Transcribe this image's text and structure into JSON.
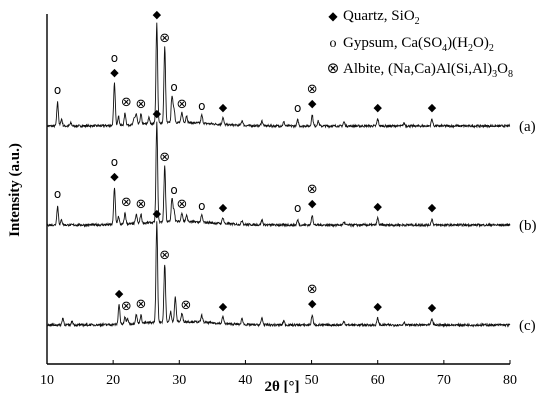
{
  "chart_data": {
    "type": "line",
    "xlabel": "2θ [°]",
    "ylabel": "Intensity (a.u.)",
    "xlim": [
      10,
      80
    ],
    "xticks": [
      10,
      20,
      30,
      40,
      50,
      60,
      70,
      80
    ],
    "grid": false,
    "legend_position": "top-right",
    "legend": [
      {
        "key": "quartz",
        "symbol": "◆",
        "text": "Quartz, SiO",
        "sub": "2"
      },
      {
        "key": "gypsum",
        "symbol": "o",
        "text": "Gypsum, Ca(SO",
        "sub1": "4",
        "mid": ")(H",
        "sub2": "2",
        "mid2": "O)",
        "sub3": "2"
      },
      {
        "key": "albite",
        "symbol": "⊗",
        "text": "Albite, (Na,Ca)Al(Si,Al)",
        "sub": "3",
        "end": "O",
        "sub2": "8"
      }
    ],
    "series": [
      {
        "name": "(a)",
        "peaks": [
          {
            "x": 11.6,
            "h": 0.24
          },
          {
            "x": 12.2,
            "h": 0.07
          },
          {
            "x": 13.6,
            "h": 0.03
          },
          {
            "x": 20.2,
            "h": 0.42
          },
          {
            "x": 20.8,
            "h": 0.09
          },
          {
            "x": 21.8,
            "h": 0.12
          },
          {
            "x": 23.2,
            "h": 0.07
          },
          {
            "x": 23.5,
            "h": 0.1
          },
          {
            "x": 24.2,
            "h": 0.1
          },
          {
            "x": 25.4,
            "h": 0.06
          },
          {
            "x": 26.6,
            "h": 1.0
          },
          {
            "x": 27.8,
            "h": 0.76
          },
          {
            "x": 28.9,
            "h": 0.27
          },
          {
            "x": 29.2,
            "h": 0.14
          },
          {
            "x": 30.4,
            "h": 0.1
          },
          {
            "x": 31.1,
            "h": 0.07
          },
          {
            "x": 33.4,
            "h": 0.08
          },
          {
            "x": 36.6,
            "h": 0.07
          },
          {
            "x": 39.5,
            "h": 0.05
          },
          {
            "x": 42.5,
            "h": 0.05
          },
          {
            "x": 45.8,
            "h": 0.04
          },
          {
            "x": 47.9,
            "h": 0.06
          },
          {
            "x": 50.1,
            "h": 0.11
          },
          {
            "x": 51.0,
            "h": 0.05
          },
          {
            "x": 54.9,
            "h": 0.04
          },
          {
            "x": 60.0,
            "h": 0.07
          },
          {
            "x": 64.0,
            "h": 0.03
          },
          {
            "x": 68.2,
            "h": 0.07
          }
        ]
      },
      {
        "name": "(b)",
        "peaks": [
          {
            "x": 11.6,
            "h": 0.19
          },
          {
            "x": 12.2,
            "h": 0.05
          },
          {
            "x": 20.2,
            "h": 0.37
          },
          {
            "x": 20.8,
            "h": 0.08
          },
          {
            "x": 21.8,
            "h": 0.11
          },
          {
            "x": 23.5,
            "h": 0.09
          },
          {
            "x": 24.2,
            "h": 0.09
          },
          {
            "x": 26.6,
            "h": 1.0
          },
          {
            "x": 27.8,
            "h": 0.56
          },
          {
            "x": 28.9,
            "h": 0.23
          },
          {
            "x": 29.2,
            "h": 0.12
          },
          {
            "x": 30.4,
            "h": 0.09
          },
          {
            "x": 31.1,
            "h": 0.06
          },
          {
            "x": 33.4,
            "h": 0.07
          },
          {
            "x": 36.6,
            "h": 0.06
          },
          {
            "x": 39.5,
            "h": 0.04
          },
          {
            "x": 42.5,
            "h": 0.05
          },
          {
            "x": 47.9,
            "h": 0.05
          },
          {
            "x": 50.1,
            "h": 0.1
          },
          {
            "x": 54.9,
            "h": 0.03
          },
          {
            "x": 60.0,
            "h": 0.07
          },
          {
            "x": 68.2,
            "h": 0.06
          }
        ]
      },
      {
        "name": "(c)",
        "peaks": [
          {
            "x": 12.4,
            "h": 0.07
          },
          {
            "x": 13.8,
            "h": 0.04
          },
          {
            "x": 20.9,
            "h": 0.2
          },
          {
            "x": 21.8,
            "h": 0.07
          },
          {
            "x": 22.2,
            "h": 0.05
          },
          {
            "x": 23.5,
            "h": 0.09
          },
          {
            "x": 24.2,
            "h": 0.08
          },
          {
            "x": 26.6,
            "h": 1.0
          },
          {
            "x": 27.8,
            "h": 0.58
          },
          {
            "x": 28.7,
            "h": 0.1
          },
          {
            "x": 29.4,
            "h": 0.25
          },
          {
            "x": 30.4,
            "h": 0.08
          },
          {
            "x": 33.4,
            "h": 0.07
          },
          {
            "x": 36.6,
            "h": 0.07
          },
          {
            "x": 39.5,
            "h": 0.06
          },
          {
            "x": 42.5,
            "h": 0.07
          },
          {
            "x": 45.8,
            "h": 0.04
          },
          {
            "x": 50.1,
            "h": 0.1
          },
          {
            "x": 54.9,
            "h": 0.04
          },
          {
            "x": 60.0,
            "h": 0.07
          },
          {
            "x": 64.0,
            "h": 0.03
          },
          {
            "x": 68.2,
            "h": 0.06
          }
        ]
      }
    ],
    "markers": [
      {
        "series": "(a)",
        "type": "gypsum",
        "x": 11.6,
        "level": 1
      },
      {
        "series": "(a)",
        "type": "quartz",
        "x": 20.2,
        "level": 1
      },
      {
        "series": "(a)",
        "type": "gypsum",
        "x": 20.2,
        "level": 2
      },
      {
        "series": "(a)",
        "type": "albite",
        "x": 22.0,
        "level": 1
      },
      {
        "series": "(a)",
        "type": "albite",
        "x": 24.2,
        "level": 1
      },
      {
        "series": "(a)",
        "type": "quartz",
        "x": 26.6,
        "level": 1
      },
      {
        "series": "(a)",
        "type": "albite",
        "x": 27.8,
        "level": 1
      },
      {
        "series": "(a)",
        "type": "gypsum",
        "x": 29.2,
        "level": 1
      },
      {
        "series": "(a)",
        "type": "albite",
        "x": 30.4,
        "level": 1
      },
      {
        "series": "(a)",
        "type": "gypsum",
        "x": 33.4,
        "level": 1
      },
      {
        "series": "(a)",
        "type": "quartz",
        "x": 36.6,
        "level": 1
      },
      {
        "series": "(a)",
        "type": "gypsum",
        "x": 47.9,
        "level": 1
      },
      {
        "series": "(a)",
        "type": "quartz",
        "x": 50.1,
        "level": 1
      },
      {
        "series": "(a)",
        "type": "albite",
        "x": 50.1,
        "level": 2
      },
      {
        "series": "(a)",
        "type": "quartz",
        "x": 60.0,
        "level": 1
      },
      {
        "series": "(a)",
        "type": "quartz",
        "x": 68.2,
        "level": 1
      },
      {
        "series": "(b)",
        "type": "gypsum",
        "x": 11.6,
        "level": 1
      },
      {
        "series": "(b)",
        "type": "quartz",
        "x": 20.2,
        "level": 1
      },
      {
        "series": "(b)",
        "type": "gypsum",
        "x": 20.2,
        "level": 2
      },
      {
        "series": "(b)",
        "type": "albite",
        "x": 22.0,
        "level": 1
      },
      {
        "series": "(b)",
        "type": "albite",
        "x": 24.2,
        "level": 1
      },
      {
        "series": "(b)",
        "type": "quartz",
        "x": 26.6,
        "level": 1
      },
      {
        "series": "(b)",
        "type": "albite",
        "x": 27.8,
        "level": 1
      },
      {
        "series": "(b)",
        "type": "gypsum",
        "x": 29.2,
        "level": 1
      },
      {
        "series": "(b)",
        "type": "albite",
        "x": 30.4,
        "level": 1
      },
      {
        "series": "(b)",
        "type": "gypsum",
        "x": 33.4,
        "level": 1
      },
      {
        "series": "(b)",
        "type": "quartz",
        "x": 36.6,
        "level": 1
      },
      {
        "series": "(b)",
        "type": "gypsum",
        "x": 47.9,
        "level": 1
      },
      {
        "series": "(b)",
        "type": "quartz",
        "x": 50.1,
        "level": 1
      },
      {
        "series": "(b)",
        "type": "albite",
        "x": 50.1,
        "level": 2
      },
      {
        "series": "(b)",
        "type": "quartz",
        "x": 60.0,
        "level": 1
      },
      {
        "series": "(b)",
        "type": "quartz",
        "x": 68.2,
        "level": 1
      },
      {
        "series": "(c)",
        "type": "quartz",
        "x": 20.9,
        "level": 1
      },
      {
        "series": "(c)",
        "type": "albite",
        "x": 22.0,
        "level": 1
      },
      {
        "series": "(c)",
        "type": "albite",
        "x": 24.2,
        "level": 1
      },
      {
        "series": "(c)",
        "type": "quartz",
        "x": 26.6,
        "level": 1
      },
      {
        "series": "(c)",
        "type": "albite",
        "x": 27.8,
        "level": 1
      },
      {
        "series": "(c)",
        "type": "albite",
        "x": 31.0,
        "level": 1
      },
      {
        "series": "(c)",
        "type": "quartz",
        "x": 36.6,
        "level": 1
      },
      {
        "series": "(c)",
        "type": "quartz",
        "x": 50.1,
        "level": 1
      },
      {
        "series": "(c)",
        "type": "albite",
        "x": 50.1,
        "level": 2
      },
      {
        "series": "(c)",
        "type": "quartz",
        "x": 60.0,
        "level": 1
      },
      {
        "series": "(c)",
        "type": "quartz",
        "x": 68.2,
        "level": 1
      }
    ]
  }
}
